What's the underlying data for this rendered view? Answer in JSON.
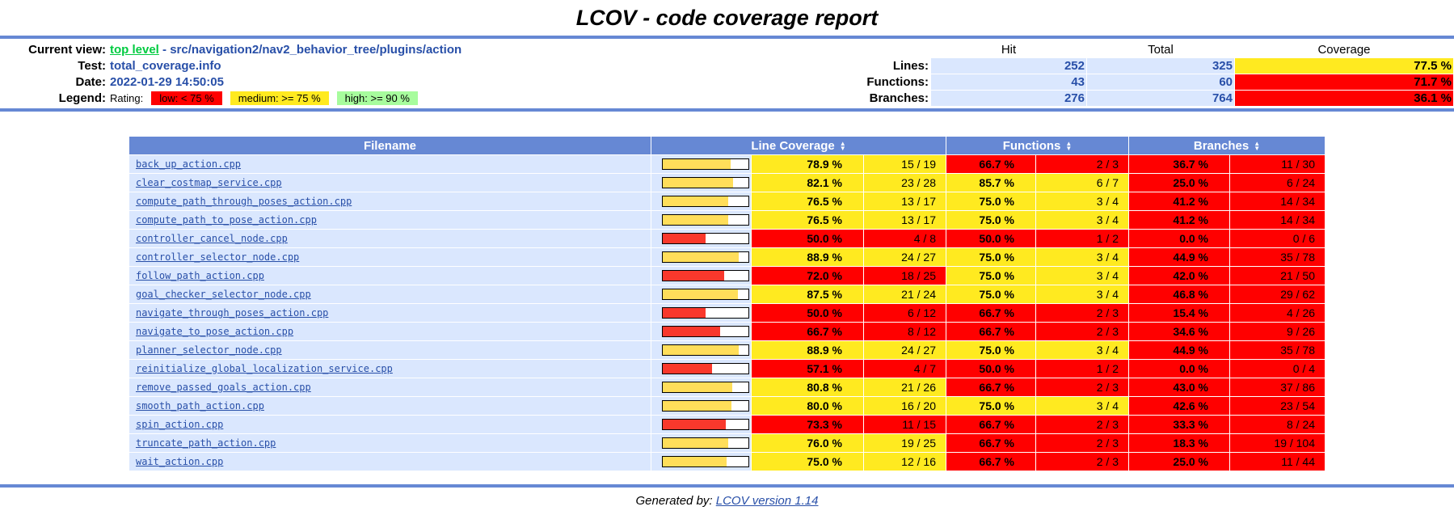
{
  "title": "LCOV - code coverage report",
  "header": {
    "current_view_label": "Current view:",
    "current_view_link": "top level",
    "current_view_path": " - src/navigation2/nav2_behavior_tree/plugins/action",
    "test_label": "Test:",
    "test_value": "total_coverage.info",
    "date_label": "Date:",
    "date_value": "2022-01-29 14:50:05",
    "legend_label": "Legend:",
    "rating_label": "Rating:",
    "legend_items": [
      {
        "text": "low: < 75 %",
        "level": "low"
      },
      {
        "text": "medium: >= 75 %",
        "level": "medium"
      },
      {
        "text": "high: >= 90 %",
        "level": "high"
      }
    ],
    "summary": {
      "col_headers": {
        "hit": "Hit",
        "total": "Total",
        "coverage": "Coverage"
      },
      "rows": [
        {
          "label": "Lines:",
          "hit": "252",
          "total": "325",
          "coverage": "77.5 %",
          "level": "medium"
        },
        {
          "label": "Functions:",
          "hit": "43",
          "total": "60",
          "coverage": "71.7 %",
          "level": "low"
        },
        {
          "label": "Branches:",
          "hit": "276",
          "total": "764",
          "coverage": "36.1 %",
          "level": "low"
        }
      ]
    }
  },
  "table": {
    "headers": {
      "filename": "Filename",
      "line": "Line Coverage",
      "functions": "Functions",
      "branches": "Branches"
    },
    "rows": [
      {
        "file": "back_up_action.cpp",
        "line": {
          "pct": "78.9 %",
          "num": 78.9,
          "ratio": "15 / 19",
          "level": "medium"
        },
        "func": {
          "pct": "66.7 %",
          "ratio": "2 / 3",
          "level": "low"
        },
        "branch": {
          "pct": "36.7 %",
          "ratio": "11 / 30",
          "level": "low"
        }
      },
      {
        "file": "clear_costmap_service.cpp",
        "line": {
          "pct": "82.1 %",
          "num": 82.1,
          "ratio": "23 / 28",
          "level": "medium"
        },
        "func": {
          "pct": "85.7 %",
          "ratio": "6 / 7",
          "level": "medium"
        },
        "branch": {
          "pct": "25.0 %",
          "ratio": "6 / 24",
          "level": "low"
        }
      },
      {
        "file": "compute_path_through_poses_action.cpp",
        "line": {
          "pct": "76.5 %",
          "num": 76.5,
          "ratio": "13 / 17",
          "level": "medium"
        },
        "func": {
          "pct": "75.0 %",
          "ratio": "3 / 4",
          "level": "medium"
        },
        "branch": {
          "pct": "41.2 %",
          "ratio": "14 / 34",
          "level": "low"
        }
      },
      {
        "file": "compute_path_to_pose_action.cpp",
        "line": {
          "pct": "76.5 %",
          "num": 76.5,
          "ratio": "13 / 17",
          "level": "medium"
        },
        "func": {
          "pct": "75.0 %",
          "ratio": "3 / 4",
          "level": "medium"
        },
        "branch": {
          "pct": "41.2 %",
          "ratio": "14 / 34",
          "level": "low"
        }
      },
      {
        "file": "controller_cancel_node.cpp",
        "line": {
          "pct": "50.0 %",
          "num": 50.0,
          "ratio": "4 / 8",
          "level": "low"
        },
        "func": {
          "pct": "50.0 %",
          "ratio": "1 / 2",
          "level": "low"
        },
        "branch": {
          "pct": "0.0 %",
          "ratio": "0 / 6",
          "level": "low"
        }
      },
      {
        "file": "controller_selector_node.cpp",
        "line": {
          "pct": "88.9 %",
          "num": 88.9,
          "ratio": "24 / 27",
          "level": "medium"
        },
        "func": {
          "pct": "75.0 %",
          "ratio": "3 / 4",
          "level": "medium"
        },
        "branch": {
          "pct": "44.9 %",
          "ratio": "35 / 78",
          "level": "low"
        }
      },
      {
        "file": "follow_path_action.cpp",
        "line": {
          "pct": "72.0 %",
          "num": 72.0,
          "ratio": "18 / 25",
          "level": "low"
        },
        "func": {
          "pct": "75.0 %",
          "ratio": "3 / 4",
          "level": "medium"
        },
        "branch": {
          "pct": "42.0 %",
          "ratio": "21 / 50",
          "level": "low"
        }
      },
      {
        "file": "goal_checker_selector_node.cpp",
        "line": {
          "pct": "87.5 %",
          "num": 87.5,
          "ratio": "21 / 24",
          "level": "medium"
        },
        "func": {
          "pct": "75.0 %",
          "ratio": "3 / 4",
          "level": "medium"
        },
        "branch": {
          "pct": "46.8 %",
          "ratio": "29 / 62",
          "level": "low"
        }
      },
      {
        "file": "navigate_through_poses_action.cpp",
        "line": {
          "pct": "50.0 %",
          "num": 50.0,
          "ratio": "6 / 12",
          "level": "low"
        },
        "func": {
          "pct": "66.7 %",
          "ratio": "2 / 3",
          "level": "low"
        },
        "branch": {
          "pct": "15.4 %",
          "ratio": "4 / 26",
          "level": "low"
        }
      },
      {
        "file": "navigate_to_pose_action.cpp",
        "line": {
          "pct": "66.7 %",
          "num": 66.7,
          "ratio": "8 / 12",
          "level": "low"
        },
        "func": {
          "pct": "66.7 %",
          "ratio": "2 / 3",
          "level": "low"
        },
        "branch": {
          "pct": "34.6 %",
          "ratio": "9 / 26",
          "level": "low"
        }
      },
      {
        "file": "planner_selector_node.cpp",
        "line": {
          "pct": "88.9 %",
          "num": 88.9,
          "ratio": "24 / 27",
          "level": "medium"
        },
        "func": {
          "pct": "75.0 %",
          "ratio": "3 / 4",
          "level": "medium"
        },
        "branch": {
          "pct": "44.9 %",
          "ratio": "35 / 78",
          "level": "low"
        }
      },
      {
        "file": "reinitialize_global_localization_service.cpp",
        "line": {
          "pct": "57.1 %",
          "num": 57.1,
          "ratio": "4 / 7",
          "level": "low"
        },
        "func": {
          "pct": "50.0 %",
          "ratio": "1 / 2",
          "level": "low"
        },
        "branch": {
          "pct": "0.0 %",
          "ratio": "0 / 4",
          "level": "low"
        }
      },
      {
        "file": "remove_passed_goals_action.cpp",
        "line": {
          "pct": "80.8 %",
          "num": 80.8,
          "ratio": "21 / 26",
          "level": "medium"
        },
        "func": {
          "pct": "66.7 %",
          "ratio": "2 / 3",
          "level": "low"
        },
        "branch": {
          "pct": "43.0 %",
          "ratio": "37 / 86",
          "level": "low"
        }
      },
      {
        "file": "smooth_path_action.cpp",
        "line": {
          "pct": "80.0 %",
          "num": 80.0,
          "ratio": "16 / 20",
          "level": "medium"
        },
        "func": {
          "pct": "75.0 %",
          "ratio": "3 / 4",
          "level": "medium"
        },
        "branch": {
          "pct": "42.6 %",
          "ratio": "23 / 54",
          "level": "low"
        }
      },
      {
        "file": "spin_action.cpp",
        "line": {
          "pct": "73.3 %",
          "num": 73.3,
          "ratio": "11 / 15",
          "level": "low"
        },
        "func": {
          "pct": "66.7 %",
          "ratio": "2 / 3",
          "level": "low"
        },
        "branch": {
          "pct": "33.3 %",
          "ratio": "8 / 24",
          "level": "low"
        }
      },
      {
        "file": "truncate_path_action.cpp",
        "line": {
          "pct": "76.0 %",
          "num": 76.0,
          "ratio": "19 / 25",
          "level": "medium"
        },
        "func": {
          "pct": "66.7 %",
          "ratio": "2 / 3",
          "level": "low"
        },
        "branch": {
          "pct": "18.3 %",
          "ratio": "19 / 104",
          "level": "low"
        }
      },
      {
        "file": "wait_action.cpp",
        "line": {
          "pct": "75.0 %",
          "num": 75.0,
          "ratio": "12 / 16",
          "level": "medium"
        },
        "func": {
          "pct": "66.7 %",
          "ratio": "2 / 3",
          "level": "low"
        },
        "branch": {
          "pct": "25.0 %",
          "ratio": "11 / 44",
          "level": "low"
        }
      }
    ]
  },
  "footer": {
    "prefix": "Generated by: ",
    "link": "LCOV version 1.14"
  },
  "colors": {
    "ruler_blue": "#6688D4",
    "row_light_blue": "#DAE7FE",
    "low_red": "#FF0000",
    "medium_yellow": "#FFEA20",
    "high_green": "#A7FC9D",
    "link_blue": "#284FA8",
    "visited_link_green": "#00CB40",
    "bar_fill_yellow": "#FFDE5A",
    "bar_fill_red": "#F9382C"
  }
}
